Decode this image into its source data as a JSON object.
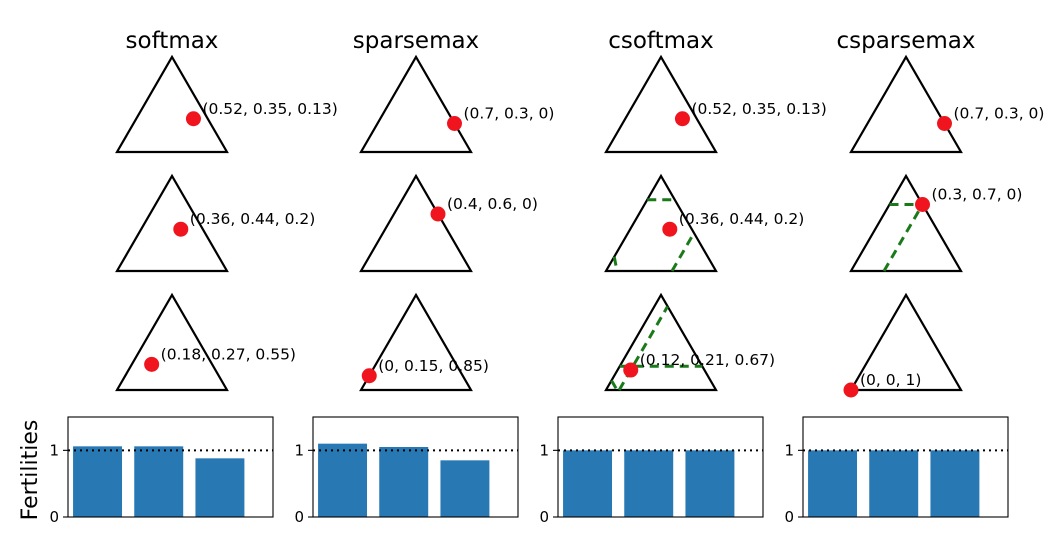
{
  "chart_data": {
    "type": "bar",
    "ylabel": "Fertilities",
    "y_ticks": [
      "0",
      "1"
    ],
    "ylim": [
      0,
      1.5
    ],
    "reference_line": 1,
    "columns": [
      {
        "title": "softmax",
        "simplex_points": [
          {
            "p": [
              0.52,
              0.35,
              0.13
            ],
            "label": "(0.52, 0.35, 0.13)"
          },
          {
            "p": [
              0.36,
              0.44,
              0.2
            ],
            "label": "(0.36, 0.44, 0.2)"
          },
          {
            "p": [
              0.18,
              0.27,
              0.55
            ],
            "label": "(0.18, 0.27, 0.55)"
          }
        ],
        "fertilities": [
          1.06,
          1.06,
          0.88
        ]
      },
      {
        "title": "sparsemax",
        "simplex_points": [
          {
            "p": [
              0.7,
              0.3,
              0
            ],
            "label": "(0.7, 0.3, 0)"
          },
          {
            "p": [
              0.4,
              0.6,
              0
            ],
            "label": "(0.4, 0.6, 0)"
          },
          {
            "p": [
              0,
              0.15,
              0.85
            ],
            "label": "(0, 0.15, 0.85)"
          }
        ],
        "fertilities": [
          1.1,
          1.05,
          0.85
        ]
      },
      {
        "title": "csoftmax",
        "simplex_points": [
          {
            "p": [
              0.52,
              0.35,
              0.13
            ],
            "label": "(0.52, 0.35, 0.13)"
          },
          {
            "p": [
              0.36,
              0.44,
              0.2
            ],
            "label": "(0.36, 0.44, 0.2)"
          },
          {
            "p": [
              0.12,
              0.21,
              0.67
            ],
            "label": "(0.12, 0.21, 0.67)"
          }
        ],
        "fertilities": [
          1.0,
          1.0,
          1.0
        ]
      },
      {
        "title": "csparsemax",
        "simplex_points": [
          {
            "p": [
              0.7,
              0.3,
              0
            ],
            "label": "(0.7, 0.3, 0)"
          },
          {
            "p": [
              0.3,
              0.7,
              0
            ],
            "label": "(0.3, 0.7, 0)"
          },
          {
            "p": [
              0,
              0,
              1
            ],
            "label": "(0, 0, 1)"
          }
        ],
        "fertilities": [
          1.0,
          1.0,
          1.0
        ]
      }
    ]
  }
}
